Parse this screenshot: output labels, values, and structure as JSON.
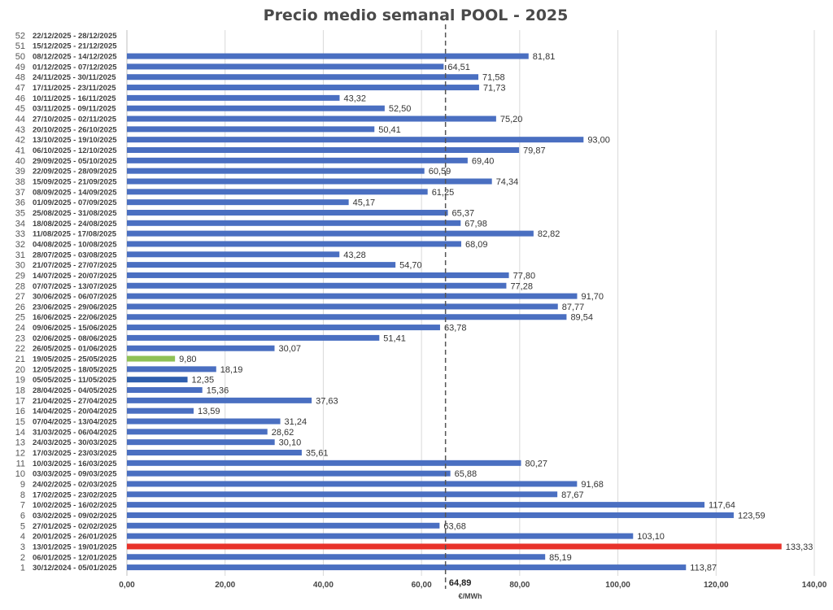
{
  "chart_data": {
    "type": "bar",
    "orientation": "horizontal",
    "title": "Precio medio semanal POOL - 2025",
    "xlabel": "€/MWh",
    "xlim": [
      0,
      140
    ],
    "x_ticks": [
      "0,00",
      "20,00",
      "40,00",
      "60,00",
      "80,00",
      "100,00",
      "120,00",
      "140,00"
    ],
    "grid": "vertical",
    "average": {
      "value": 64.89,
      "label": "64,89"
    },
    "colors": {
      "default": "#4a6fc1",
      "max": "#e8322a",
      "min": "#8fc156",
      "highlight": "#2f5fae"
    },
    "bars": [
      {
        "week": "1",
        "range": "30/12/2024 - 05/01/2025",
        "value": 113.87,
        "label": "113,87",
        "color": "#4a6fc1"
      },
      {
        "week": "2",
        "range": "06/01/2025 - 12/01/2025",
        "value": 85.19,
        "label": "85,19",
        "color": "#4a6fc1"
      },
      {
        "week": "3",
        "range": "13/01/2025 - 19/01/2025",
        "value": 133.33,
        "label": "133,33",
        "color": "#e8322a"
      },
      {
        "week": "4",
        "range": "20/01/2025 - 26/01/2025",
        "value": 103.1,
        "label": "103,10",
        "color": "#4a6fc1"
      },
      {
        "week": "5",
        "range": "27/01/2025 - 02/02/2025",
        "value": 63.68,
        "label": "63,68",
        "color": "#4a6fc1"
      },
      {
        "week": "6",
        "range": "03/02/2025 - 09/02/2025",
        "value": 123.59,
        "label": "123,59",
        "color": "#4a6fc1"
      },
      {
        "week": "7",
        "range": "10/02/2025 - 16/02/2025",
        "value": 117.64,
        "label": "117,64",
        "color": "#4a6fc1"
      },
      {
        "week": "8",
        "range": "17/02/2025 - 23/02/2025",
        "value": 87.67,
        "label": "87,67",
        "color": "#4a6fc1"
      },
      {
        "week": "9",
        "range": "24/02/2025 - 02/03/2025",
        "value": 91.68,
        "label": "91,68",
        "color": "#4a6fc1"
      },
      {
        "week": "10",
        "range": "03/03/2025 - 09/03/2025",
        "value": 65.88,
        "label": "65,88",
        "color": "#4a6fc1"
      },
      {
        "week": "11",
        "range": "10/03/2025 - 16/03/2025",
        "value": 80.27,
        "label": "80,27",
        "color": "#4a6fc1"
      },
      {
        "week": "12",
        "range": "17/03/2025 - 23/03/2025",
        "value": 35.61,
        "label": "35,61",
        "color": "#4a6fc1"
      },
      {
        "week": "13",
        "range": "24/03/2025 - 30/03/2025",
        "value": 30.1,
        "label": "30,10",
        "color": "#4a6fc1"
      },
      {
        "week": "14",
        "range": "31/03/2025 - 06/04/2025",
        "value": 28.62,
        "label": "28,62",
        "color": "#4a6fc1"
      },
      {
        "week": "15",
        "range": "07/04/2025 - 13/04/2025",
        "value": 31.24,
        "label": "31,24",
        "color": "#4a6fc1"
      },
      {
        "week": "16",
        "range": "14/04/2025 - 20/04/2025",
        "value": 13.59,
        "label": "13,59",
        "color": "#4a6fc1"
      },
      {
        "week": "17",
        "range": "21/04/2025 - 27/04/2025",
        "value": 37.63,
        "label": "37,63",
        "color": "#4a6fc1"
      },
      {
        "week": "18",
        "range": "28/04/2025 - 04/05/2025",
        "value": 15.36,
        "label": "15,36",
        "color": "#4a6fc1"
      },
      {
        "week": "19",
        "range": "05/05/2025 - 11/05/2025",
        "value": 12.35,
        "label": "12,35",
        "color": "#2f5fae"
      },
      {
        "week": "20",
        "range": "12/05/2025 - 18/05/2025",
        "value": 18.19,
        "label": "18,19",
        "color": "#4a6fc1"
      },
      {
        "week": "21",
        "range": "19/05/2025 - 25/05/2025",
        "value": 9.8,
        "label": "9,80",
        "color": "#8fc156"
      },
      {
        "week": "22",
        "range": "26/05/2025 - 01/06/2025",
        "value": 30.07,
        "label": "30,07",
        "color": "#4a6fc1"
      },
      {
        "week": "23",
        "range": "02/06/2025 - 08/06/2025",
        "value": 51.41,
        "label": "51,41",
        "color": "#4a6fc1"
      },
      {
        "week": "24",
        "range": "09/06/2025 - 15/06/2025",
        "value": 63.78,
        "label": "63,78",
        "color": "#4a6fc1"
      },
      {
        "week": "25",
        "range": "16/06/2025 - 22/06/2025",
        "value": 89.54,
        "label": "89,54",
        "color": "#4a6fc1"
      },
      {
        "week": "26",
        "range": "23/06/2025 - 29/06/2025",
        "value": 87.77,
        "label": "87,77",
        "color": "#4a6fc1"
      },
      {
        "week": "27",
        "range": "30/06/2025 - 06/07/2025",
        "value": 91.7,
        "label": "91,70",
        "color": "#4a6fc1"
      },
      {
        "week": "28",
        "range": "07/07/2025 - 13/07/2025",
        "value": 77.28,
        "label": "77,28",
        "color": "#4a6fc1"
      },
      {
        "week": "29",
        "range": "14/07/2025 - 20/07/2025",
        "value": 77.8,
        "label": "77,80",
        "color": "#4a6fc1"
      },
      {
        "week": "30",
        "range": "21/07/2025 - 27/07/2025",
        "value": 54.7,
        "label": "54,70",
        "color": "#4a6fc1"
      },
      {
        "week": "31",
        "range": "28/07/2025 - 03/08/2025",
        "value": 43.28,
        "label": "43,28",
        "color": "#4a6fc1"
      },
      {
        "week": "32",
        "range": "04/08/2025 - 10/08/2025",
        "value": 68.09,
        "label": "68,09",
        "color": "#4a6fc1"
      },
      {
        "week": "33",
        "range": "11/08/2025 - 17/08/2025",
        "value": 82.82,
        "label": "82,82",
        "color": "#4a6fc1"
      },
      {
        "week": "34",
        "range": "18/08/2025 - 24/08/2025",
        "value": 67.98,
        "label": "67,98",
        "color": "#4a6fc1"
      },
      {
        "week": "35",
        "range": "25/08/2025 - 31/08/2025",
        "value": 65.37,
        "label": "65,37",
        "color": "#4a6fc1"
      },
      {
        "week": "36",
        "range": "01/09/2025 - 07/09/2025",
        "value": 45.17,
        "label": "45,17",
        "color": "#4a6fc1"
      },
      {
        "week": "37",
        "range": "08/09/2025 - 14/09/2025",
        "value": 61.25,
        "label": "61,25",
        "color": "#4a6fc1"
      },
      {
        "week": "38",
        "range": "15/09/2025 - 21/09/2025",
        "value": 74.34,
        "label": "74,34",
        "color": "#4a6fc1"
      },
      {
        "week": "39",
        "range": "22/09/2025 - 28/09/2025",
        "value": 60.59,
        "label": "60,59",
        "color": "#4a6fc1"
      },
      {
        "week": "40",
        "range": "29/09/2025 - 05/10/2025",
        "value": 69.4,
        "label": "69,40",
        "color": "#4a6fc1"
      },
      {
        "week": "41",
        "range": "06/10/2025 - 12/10/2025",
        "value": 79.87,
        "label": "79,87",
        "color": "#4a6fc1"
      },
      {
        "week": "42",
        "range": "13/10/2025 - 19/10/2025",
        "value": 93.0,
        "label": "93,00",
        "color": "#4a6fc1"
      },
      {
        "week": "43",
        "range": "20/10/2025 - 26/10/2025",
        "value": 50.41,
        "label": "50,41",
        "color": "#4a6fc1"
      },
      {
        "week": "44",
        "range": "27/10/2025 - 02/11/2025",
        "value": 75.2,
        "label": "75,20",
        "color": "#4a6fc1"
      },
      {
        "week": "45",
        "range": "03/11/2025 - 09/11/2025",
        "value": 52.5,
        "label": "52,50",
        "color": "#4a6fc1"
      },
      {
        "week": "46",
        "range": "10/11/2025 - 16/11/2025",
        "value": 43.32,
        "label": "43,32",
        "color": "#4a6fc1"
      },
      {
        "week": "47",
        "range": "17/11/2025 - 23/11/2025",
        "value": 71.73,
        "label": "71,73",
        "color": "#4a6fc1"
      },
      {
        "week": "48",
        "range": "24/11/2025 - 30/11/2025",
        "value": 71.58,
        "label": "71,58",
        "color": "#4a6fc1"
      },
      {
        "week": "49",
        "range": "01/12/2025 - 07/12/2025",
        "value": 64.51,
        "label": "64,51",
        "color": "#4a6fc1"
      },
      {
        "week": "50",
        "range": "08/12/2025 - 14/12/2025",
        "value": 81.81,
        "label": "81,81",
        "color": "#4a6fc1"
      },
      {
        "week": "51",
        "range": "15/12/2025 - 21/12/2025",
        "value": null,
        "label": "",
        "color": "#4a6fc1"
      },
      {
        "week": "52",
        "range": "22/12/2025 - 28/12/2025",
        "value": null,
        "label": "",
        "color": "#4a6fc1"
      }
    ]
  }
}
